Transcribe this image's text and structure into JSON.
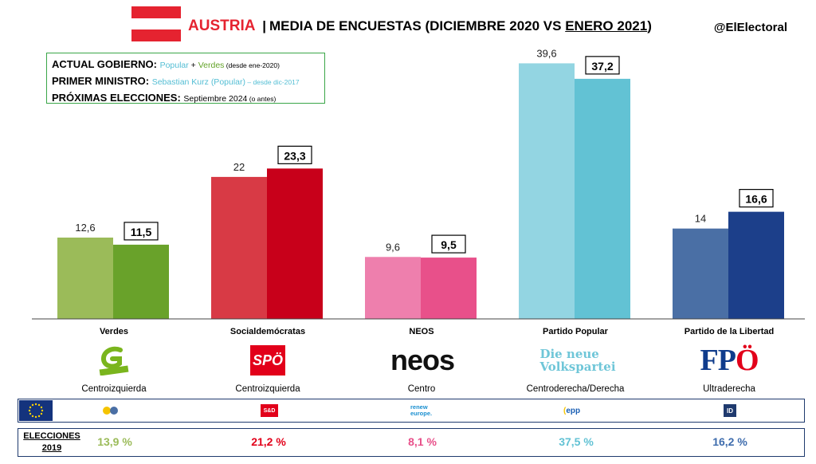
{
  "header": {
    "country": "AUSTRIA",
    "separator": "|",
    "title_prefix": "MEDIA DE ENCUESTAS (DICIEMBRE 2020 VS ",
    "title_underlined": "ENERO 2021",
    "title_suffix": ")",
    "handle": "@ElElectoral"
  },
  "info": {
    "gov_label": "ACTUAL GOBIERNO:",
    "gov_popular": "Popular",
    "gov_plus": " + ",
    "gov_verdes": "Verdes",
    "gov_since": " (desde ene-2020)",
    "pm_label": "PRIMER MINISTRO:",
    "pm_value": "Sebastian Kurz (Popular)",
    "pm_since": " – desde dic-2017",
    "next_label": "PRÓXIMAS ELECCIONES:",
    "next_value": "Septiembre 2024",
    "next_note": " (o antes)"
  },
  "chart_data": {
    "type": "bar",
    "categories": [
      "Verdes",
      "Socialdemócratas",
      "NEOS",
      "Partido Popular",
      "Partido de la Libertad"
    ],
    "series": [
      {
        "values": [
          12.6,
          22,
          9.6,
          39.6,
          14
        ],
        "labels": [
          "12,6",
          "22",
          "9,6",
          "39,6",
          "14"
        ]
      },
      {
        "values": [
          11.5,
          23.3,
          9.5,
          37.2,
          16.6
        ],
        "labels": [
          "11,5",
          "23,3",
          "9,5",
          "37,2",
          "16,6"
        ]
      }
    ],
    "colors_old": [
      "#9bbb59",
      "#d83a45",
      "#ee7fad",
      "#93d5e2",
      "#4a6fa5"
    ],
    "colors_new": [
      "#69a22a",
      "#c8001a",
      "#e8508a",
      "#62c2d4",
      "#1c3f8a"
    ],
    "ylim": [
      0,
      42
    ]
  },
  "parties": [
    {
      "name": "Verdes",
      "ideology": "Centroizquierda",
      "logo": "die-gruenen-logo",
      "elections_2019": "13,9 %",
      "color": "#9bbb59"
    },
    {
      "name": "Socialdemócratas",
      "ideology": "Centroizquierda",
      "logo": "spo-logo",
      "logo_text": "SPÖ",
      "elections_2019": "21,2 %",
      "color": "#e2001a"
    },
    {
      "name": "NEOS",
      "ideology": "Centro",
      "logo": "neos-logo",
      "logo_text": "neos",
      "elections_2019": "8,1 %",
      "color": "#e8508a"
    },
    {
      "name": "Partido Popular",
      "ideology": "Centroderecha/Derecha",
      "logo": "ovp-logo",
      "logo_text_1": "Die neue",
      "logo_text_2": "Volkspartei",
      "elections_2019": "37,5 %",
      "color": "#62c2d4"
    },
    {
      "name": "Partido de la Libertad",
      "ideology": "Ultraderecha",
      "logo": "fpo-logo",
      "logo_text_1": "FP",
      "logo_text_2": "Ö",
      "elections_2019": "16,2 %",
      "color": "#3e6cad"
    }
  ],
  "eu_groups": {
    "sd_text": "S&D",
    "renew_text_1": "renew",
    "renew_text_2": "europe.",
    "epp_text": "epp",
    "id_text": "ID"
  },
  "elections": {
    "label_1": "ELECCIONES",
    "label_2": "2019"
  }
}
